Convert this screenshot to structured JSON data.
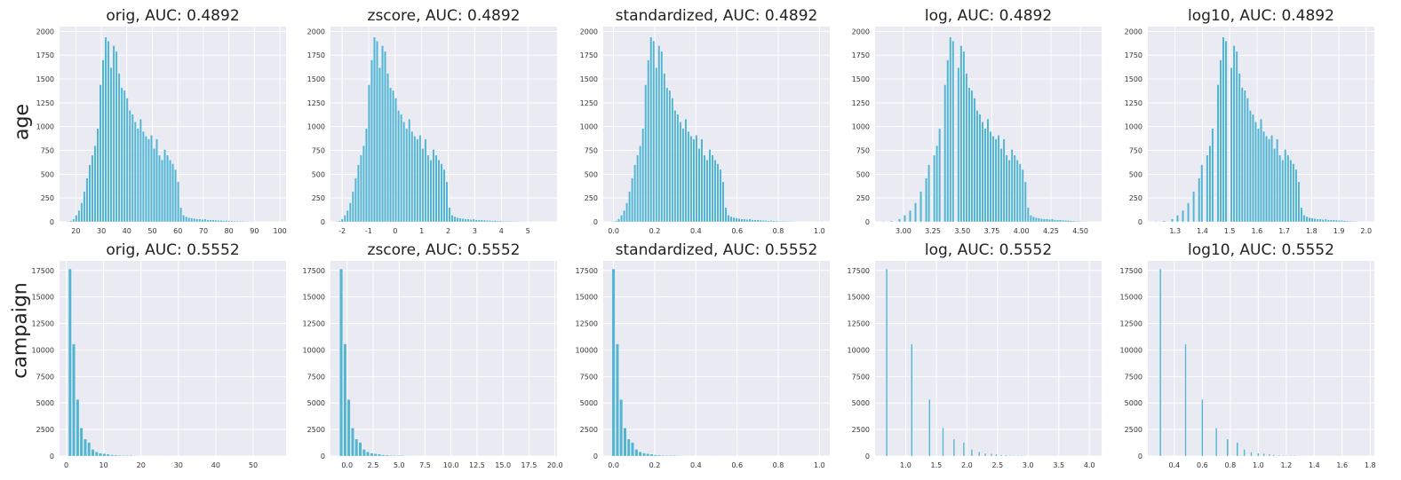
{
  "row_labels": [
    "age",
    "campaign"
  ],
  "colors": {
    "bar": "#56b4d3",
    "bar_edge": "#ffffff",
    "plot_bg": "#eaeaf2",
    "grid": "#ffffff"
  },
  "chart_data": [
    {
      "type": "bar",
      "row": 0,
      "col": 0,
      "title": "orig, AUC: 0.4892",
      "xlim": [
        13.6,
        102.4
      ],
      "ylim": [
        0,
        2050
      ],
      "xticks": [
        20,
        30,
        40,
        50,
        60,
        70,
        80,
        90,
        100
      ],
      "yticks": [
        0,
        250,
        500,
        750,
        1000,
        1250,
        1500,
        1750,
        2000
      ],
      "bins": {
        "start": 17,
        "end": 98,
        "count": 78
      },
      "series": [
        {
          "values": [
            5,
            12,
            30,
            70,
            120,
            200,
            320,
            460,
            600,
            700,
            800,
            980,
            1440,
            1700,
            1940,
            1900,
            1620,
            1850,
            1790,
            1560,
            1410,
            1380,
            1300,
            1170,
            1130,
            1050,
            980,
            1080,
            950,
            900,
            870,
            910,
            770,
            870,
            700,
            650,
            760,
            700,
            650,
            610,
            550,
            420,
            150,
            70,
            55,
            45,
            40,
            35,
            30,
            30,
            25,
            30,
            22,
            20,
            20,
            18,
            15,
            15,
            12,
            14,
            10,
            10,
            8,
            8,
            6,
            6,
            5,
            5,
            4,
            4,
            3,
            3,
            3,
            2,
            2,
            2,
            1,
            1
          ]
        }
      ]
    },
    {
      "type": "bar",
      "row": 0,
      "col": 1,
      "title": "zscore, AUC: 0.4892",
      "xlim": [
        -2.44,
        6.1
      ],
      "ylim": [
        0,
        2050
      ],
      "xticks": [
        -2,
        -1,
        0,
        1,
        2,
        3,
        4,
        5
      ],
      "yticks": [
        0,
        250,
        500,
        750,
        1000,
        1250,
        1500,
        1750,
        2000
      ],
      "bins": {
        "start": -2.2,
        "end": 5.59,
        "count": 78
      },
      "series": [
        {
          "values": [
            5,
            12,
            30,
            70,
            120,
            200,
            320,
            460,
            600,
            700,
            800,
            980,
            1440,
            1700,
            1940,
            1900,
            1620,
            1850,
            1790,
            1560,
            1410,
            1380,
            1300,
            1170,
            1130,
            1050,
            980,
            1080,
            950,
            900,
            870,
            910,
            770,
            870,
            700,
            650,
            760,
            700,
            650,
            610,
            550,
            420,
            150,
            70,
            55,
            45,
            40,
            35,
            30,
            30,
            25,
            30,
            22,
            20,
            20,
            18,
            15,
            15,
            12,
            14,
            10,
            10,
            8,
            8,
            6,
            6,
            5,
            5,
            4,
            4,
            3,
            3,
            3,
            2,
            2,
            2,
            1,
            1
          ]
        }
      ]
    },
    {
      "type": "bar",
      "row": 0,
      "col": 2,
      "title": "standardized, AUC: 0.4892",
      "xlim": [
        -0.05,
        1.05
      ],
      "ylim": [
        0,
        2050
      ],
      "xticks": [
        0.0,
        0.2,
        0.4,
        0.6,
        0.8,
        1.0
      ],
      "xtick_labels": [
        "0.0",
        "0.2",
        "0.4",
        "0.6",
        "0.8",
        "1.0"
      ],
      "yticks": [
        0,
        250,
        500,
        750,
        1000,
        1250,
        1500,
        1750,
        2000
      ],
      "bins": {
        "start": 0.0,
        "end": 1.0,
        "count": 78
      },
      "series": [
        {
          "values": [
            5,
            12,
            30,
            70,
            120,
            200,
            320,
            460,
            600,
            700,
            800,
            980,
            1440,
            1700,
            1940,
            1900,
            1620,
            1850,
            1790,
            1560,
            1410,
            1380,
            1300,
            1170,
            1130,
            1050,
            980,
            1080,
            950,
            900,
            870,
            910,
            770,
            870,
            700,
            650,
            760,
            700,
            650,
            610,
            550,
            420,
            150,
            70,
            55,
            45,
            40,
            35,
            30,
            30,
            25,
            30,
            22,
            20,
            20,
            18,
            15,
            15,
            12,
            14,
            10,
            10,
            8,
            8,
            6,
            6,
            5,
            5,
            4,
            4,
            3,
            3,
            3,
            2,
            2,
            2,
            1,
            1
          ]
        }
      ]
    },
    {
      "type": "bar",
      "row": 0,
      "col": 3,
      "title": "log, AUC: 0.4892",
      "xlim": [
        2.76,
        4.68
      ],
      "ylim": [
        0,
        2050
      ],
      "xticks": [
        3.0,
        3.25,
        3.5,
        3.75,
        4.0,
        4.25,
        4.5
      ],
      "xtick_labels": [
        "3.00",
        "3.25",
        "3.50",
        "3.75",
        "4.00",
        "4.25",
        "4.50"
      ],
      "yticks": [
        0,
        250,
        500,
        750,
        1000,
        1250,
        1500,
        1750,
        2000
      ],
      "bins": {
        "start": 2.83,
        "end": 4.58,
        "count": 78
      },
      "series": [
        {
          "values": [
            5,
            0,
            0,
            12,
            0,
            0,
            30,
            0,
            70,
            0,
            120,
            0,
            200,
            0,
            320,
            0,
            460,
            600,
            0,
            700,
            800,
            980,
            0,
            1440,
            1700,
            1940,
            1900,
            0,
            1620,
            1850,
            1790,
            1560,
            1410,
            1380,
            1300,
            1170,
            1130,
            1050,
            980,
            1080,
            950,
            900,
            870,
            910,
            770,
            870,
            700,
            650,
            760,
            700,
            650,
            610,
            550,
            420,
            150,
            70,
            55,
            45,
            40,
            35,
            30,
            30,
            25,
            30,
            22,
            20,
            20,
            18,
            15,
            15,
            12,
            10,
            8,
            6,
            5,
            4,
            3,
            2
          ]
        }
      ]
    },
    {
      "type": "bar",
      "row": 0,
      "col": 4,
      "title": "log10, AUC: 0.4892",
      "xlim": [
        1.2,
        2.03
      ],
      "ylim": [
        0,
        2050
      ],
      "xticks": [
        1.3,
        1.4,
        1.5,
        1.6,
        1.7,
        1.8,
        1.9,
        2.0
      ],
      "xtick_labels": [
        "1.3",
        "1.4",
        "1.5",
        "1.6",
        "1.7",
        "1.8",
        "1.9",
        "2.0"
      ],
      "yticks": [
        0,
        250,
        500,
        750,
        1000,
        1250,
        1500,
        1750,
        2000
      ],
      "bins": {
        "start": 1.23,
        "end": 1.99,
        "count": 78
      },
      "series": [
        {
          "values": [
            5,
            0,
            0,
            12,
            0,
            0,
            30,
            0,
            70,
            0,
            120,
            0,
            200,
            0,
            320,
            0,
            460,
            600,
            0,
            700,
            800,
            980,
            0,
            1440,
            1700,
            1940,
            1900,
            0,
            1620,
            1850,
            1790,
            1560,
            1410,
            1380,
            1300,
            1170,
            1130,
            1050,
            980,
            1080,
            950,
            900,
            870,
            910,
            770,
            870,
            700,
            650,
            760,
            700,
            650,
            610,
            550,
            420,
            150,
            70,
            55,
            45,
            40,
            35,
            30,
            30,
            25,
            30,
            22,
            20,
            20,
            18,
            15,
            15,
            12,
            10,
            8,
            6,
            5,
            4,
            3,
            2
          ]
        }
      ]
    },
    {
      "type": "bar",
      "row": 1,
      "col": 0,
      "title": "orig, AUC: 0.5552",
      "xlim": [
        -1.8,
        58.8
      ],
      "ylim": [
        0,
        18400
      ],
      "xticks": [
        0,
        10,
        20,
        30,
        40,
        50
      ],
      "yticks": [
        0,
        2500,
        5000,
        7500,
        10000,
        12500,
        15000,
        17500
      ],
      "bins": {
        "start": 1,
        "end": 56,
        "count": 55
      },
      "series": [
        {
          "values": [
            17640,
            10570,
            5340,
            2650,
            1600,
            1290,
            630,
            400,
            280,
            230,
            180,
            120,
            90,
            70,
            50,
            55,
            60,
            35,
            30,
            25,
            20,
            20,
            18,
            16,
            14,
            12,
            10,
            9,
            8,
            7,
            6,
            6,
            5,
            5,
            4,
            4,
            3,
            3,
            3,
            2,
            2,
            2,
            2,
            1,
            1,
            1,
            1,
            1,
            1,
            1,
            1,
            1,
            1,
            1,
            1
          ]
        }
      ]
    },
    {
      "type": "bar",
      "row": 1,
      "col": 1,
      "title": "zscore, AUC: 0.5552",
      "xlim": [
        -1.6,
        20.2
      ],
      "ylim": [
        0,
        18400
      ],
      "xticks": [
        0.0,
        2.5,
        5.0,
        7.5,
        10.0,
        12.5,
        15.0,
        17.5,
        20.0
      ],
      "xtick_labels": [
        "0.0",
        "2.5",
        "5.0",
        "7.5",
        "10.0",
        "12.5",
        "15.0",
        "17.5",
        "20.0"
      ],
      "yticks": [
        0,
        2500,
        5000,
        7500,
        10000,
        12500,
        15000,
        17500
      ],
      "bins": {
        "start": -0.57,
        "end": 19.25,
        "count": 55
      },
      "series": [
        {
          "values": [
            17640,
            10570,
            5340,
            2650,
            1600,
            1290,
            630,
            400,
            280,
            230,
            180,
            120,
            90,
            70,
            50,
            55,
            60,
            35,
            30,
            25,
            20,
            20,
            18,
            16,
            14,
            12,
            10,
            9,
            8,
            7,
            6,
            6,
            5,
            5,
            4,
            4,
            3,
            3,
            3,
            2,
            2,
            2,
            2,
            1,
            1,
            1,
            1,
            1,
            1,
            1,
            1,
            1,
            1,
            1,
            1
          ]
        }
      ]
    },
    {
      "type": "bar",
      "row": 1,
      "col": 2,
      "title": "standardized, AUC: 0.5552",
      "xlim": [
        -0.05,
        1.05
      ],
      "ylim": [
        0,
        18400
      ],
      "xticks": [
        0.0,
        0.2,
        0.4,
        0.6,
        0.8,
        1.0
      ],
      "xtick_labels": [
        "0.0",
        "0.2",
        "0.4",
        "0.6",
        "0.8",
        "1.0"
      ],
      "yticks": [
        0,
        2500,
        5000,
        7500,
        10000,
        12500,
        15000,
        17500
      ],
      "bins": {
        "start": 0.0,
        "end": 1.0,
        "count": 55
      },
      "series": [
        {
          "values": [
            17640,
            10570,
            5340,
            2650,
            1600,
            1290,
            630,
            400,
            280,
            230,
            180,
            120,
            90,
            70,
            50,
            55,
            60,
            35,
            30,
            25,
            20,
            20,
            18,
            16,
            14,
            12,
            10,
            9,
            8,
            7,
            6,
            6,
            5,
            5,
            4,
            4,
            3,
            3,
            3,
            2,
            2,
            2,
            2,
            1,
            1,
            1,
            1,
            1,
            1,
            1,
            1,
            1,
            1,
            1,
            1
          ]
        }
      ]
    },
    {
      "type": "bar",
      "row": 1,
      "col": 3,
      "title": "log, AUC: 0.5552",
      "xlim": [
        0.5,
        4.2
      ],
      "ylim": [
        0,
        18400
      ],
      "xticks": [
        1.0,
        1.5,
        2.0,
        2.5,
        3.0,
        3.5,
        4.0
      ],
      "xtick_labels": [
        "1.0",
        "1.5",
        "2.0",
        "2.5",
        "3.0",
        "3.5",
        "4.0"
      ],
      "yticks": [
        0,
        2500,
        5000,
        7500,
        10000,
        12500,
        15000,
        17500
      ],
      "x": [
        0.69,
        1.1,
        1.39,
        1.61,
        1.79,
        1.95,
        2.08,
        2.2,
        2.3,
        2.4,
        2.48,
        2.56,
        2.64,
        2.71,
        2.77,
        2.83,
        2.89,
        2.94,
        3.0,
        3.04,
        3.09,
        3.14,
        3.18,
        3.22,
        3.26,
        3.3,
        3.33,
        3.37,
        3.4,
        3.43,
        3.47,
        3.5,
        3.53,
        3.56,
        3.58,
        3.61,
        3.64,
        3.66,
        3.69,
        3.71,
        3.74,
        3.76,
        3.78,
        3.81,
        3.83,
        3.85,
        3.87,
        3.89,
        3.91,
        3.93,
        3.95,
        3.97,
        3.99,
        4.01,
        4.03
      ],
      "series": [
        {
          "values": [
            17640,
            10570,
            5340,
            2650,
            1600,
            1290,
            630,
            400,
            280,
            230,
            180,
            120,
            90,
            70,
            50,
            55,
            60,
            35,
            30,
            25,
            20,
            20,
            18,
            16,
            14,
            12,
            10,
            9,
            8,
            7,
            6,
            6,
            5,
            5,
            4,
            4,
            3,
            3,
            3,
            2,
            2,
            2,
            2,
            1,
            1,
            1,
            1,
            1,
            1,
            1,
            1,
            1,
            1,
            1,
            1
          ]
        }
      ]
    },
    {
      "type": "bar",
      "row": 1,
      "col": 4,
      "title": "log10, AUC: 0.5552",
      "xlim": [
        0.21,
        1.83
      ],
      "ylim": [
        0,
        18400
      ],
      "xticks": [
        0.4,
        0.6,
        0.8,
        1.0,
        1.2,
        1.4,
        1.6,
        1.8
      ],
      "xtick_labels": [
        "0.4",
        "0.6",
        "0.8",
        "1.0",
        "1.2",
        "1.4",
        "1.6",
        "1.8"
      ],
      "yticks": [
        0,
        2500,
        5000,
        7500,
        10000,
        12500,
        15000,
        17500
      ],
      "x": [
        0.3,
        0.48,
        0.6,
        0.7,
        0.78,
        0.85,
        0.9,
        0.95,
        1.0,
        1.04,
        1.08,
        1.11,
        1.15,
        1.18,
        1.2,
        1.23,
        1.26,
        1.28,
        1.3,
        1.32,
        1.34,
        1.36,
        1.38,
        1.4,
        1.41,
        1.43,
        1.45,
        1.46,
        1.48,
        1.49,
        1.51,
        1.52,
        1.53,
        1.54,
        1.56,
        1.57,
        1.58,
        1.59,
        1.6,
        1.61,
        1.62,
        1.63,
        1.64,
        1.65,
        1.66,
        1.67,
        1.68,
        1.69,
        1.7,
        1.71,
        1.72,
        1.72,
        1.73,
        1.74,
        1.75
      ],
      "series": [
        {
          "values": [
            17640,
            10570,
            5340,
            2650,
            1600,
            1290,
            630,
            400,
            280,
            230,
            180,
            120,
            90,
            70,
            50,
            55,
            60,
            35,
            30,
            25,
            20,
            20,
            18,
            16,
            14,
            12,
            10,
            9,
            8,
            7,
            6,
            6,
            5,
            5,
            4,
            4,
            3,
            3,
            3,
            2,
            2,
            2,
            2,
            1,
            1,
            1,
            1,
            1,
            1,
            1,
            1,
            1,
            1,
            1,
            1
          ]
        }
      ]
    }
  ]
}
